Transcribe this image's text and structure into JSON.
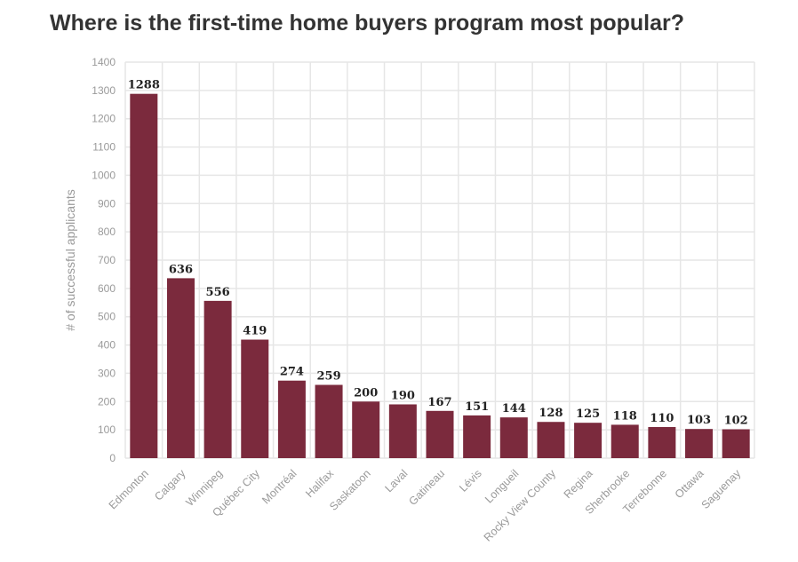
{
  "chart_data": {
    "type": "bar",
    "title": "Where is the first-time home buyers program most popular?",
    "xlabel": "",
    "ylabel": "# of successful applicants",
    "ylim": [
      0,
      1400
    ],
    "yticks": [
      0,
      100,
      200,
      300,
      400,
      500,
      600,
      700,
      800,
      900,
      1000,
      1100,
      1200,
      1300,
      1400
    ],
    "grid": true,
    "bar_color": "#7b2a3d",
    "categories": [
      "Edmonton",
      "Calgary",
      "Winnipeg",
      "Québec City",
      "Montréal",
      "Halifax",
      "Saskatoon",
      "Laval",
      "Gatineau",
      "Lévis",
      "Longueil",
      "Rocky View County",
      "Regina",
      "Sherbrooke",
      "Terrebonne",
      "Ottawa",
      "Saguenay"
    ],
    "values": [
      1288,
      636,
      556,
      419,
      274,
      259,
      200,
      190,
      167,
      151,
      144,
      128,
      125,
      118,
      110,
      103,
      102
    ]
  }
}
